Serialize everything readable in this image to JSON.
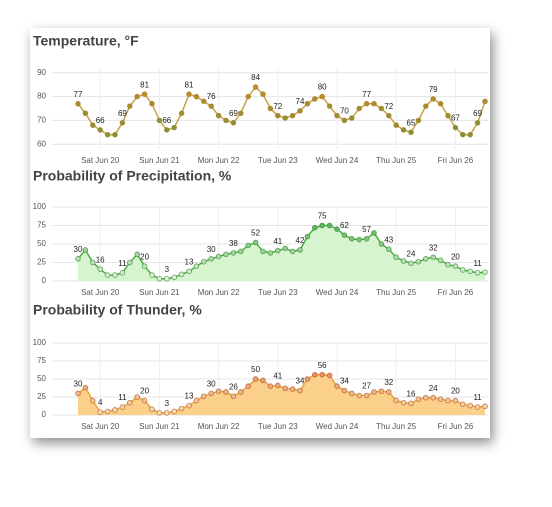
{
  "chart_data": [
    {
      "type": "line",
      "title": "Temperature, °F",
      "categories": [
        null,
        null,
        null,
        "Sat Jun 20",
        null,
        null,
        null,
        null,
        null,
        null,
        null,
        "Sun Jun 21",
        null,
        null,
        null,
        null,
        null,
        null,
        null,
        "Mon Jun 22",
        null,
        null,
        null,
        null,
        null,
        null,
        null,
        "Tue Jun 23",
        null,
        null,
        null,
        null,
        null,
        null,
        null,
        "Wed Jun 24",
        null,
        null,
        null,
        null,
        null,
        null,
        null,
        "Thu Jun 25",
        null,
        null,
        null,
        null,
        null,
        null,
        null,
        "Fri Jun 26",
        null,
        null,
        null,
        null
      ],
      "values": [
        77,
        73,
        68,
        66,
        64,
        64,
        69,
        76,
        80,
        81,
        77,
        70,
        66,
        67,
        73,
        81,
        80,
        78,
        76,
        72,
        70,
        69,
        73,
        80,
        84,
        81,
        75,
        72,
        71,
        72,
        74,
        77,
        79,
        80,
        76,
        72,
        70,
        71,
        75,
        77,
        77,
        75,
        72,
        68,
        66,
        65,
        70,
        76,
        79,
        77,
        72,
        67,
        64,
        64,
        69,
        78
      ],
      "value_labels": [
        "77",
        null,
        null,
        "66",
        null,
        null,
        "69",
        null,
        null,
        "81",
        null,
        null,
        "66",
        null,
        null,
        "81",
        null,
        null,
        "76",
        null,
        null,
        "69",
        null,
        null,
        "84",
        null,
        null,
        "72",
        null,
        null,
        "74",
        null,
        null,
        "80",
        null,
        null,
        "70",
        null,
        null,
        "77",
        null,
        null,
        "72",
        null,
        null,
        "65",
        null,
        null,
        "79",
        null,
        null,
        "67",
        null,
        null,
        "69",
        null
      ],
      "ylim": [
        58,
        92
      ],
      "yticks": [
        60,
        70,
        80,
        90
      ],
      "grid": true,
      "color": "#c9a24a",
      "color_scale": [
        "#5a9e3a",
        "#e0861e"
      ]
    },
    {
      "type": "area",
      "title": "Probability of Precipitation, %",
      "categories": [
        null,
        null,
        null,
        "Sat Jun 20",
        null,
        null,
        null,
        null,
        null,
        null,
        null,
        "Sun Jun 21",
        null,
        null,
        null,
        null,
        null,
        null,
        null,
        "Mon Jun 22",
        null,
        null,
        null,
        null,
        null,
        null,
        null,
        "Tue Jun 23",
        null,
        null,
        null,
        null,
        null,
        null,
        null,
        "Wed Jun 24",
        null,
        null,
        null,
        null,
        null,
        null,
        null,
        "Thu Jun 25",
        null,
        null,
        null,
        null,
        null,
        null,
        null,
        "Fri Jun 26",
        null,
        null,
        null,
        null
      ],
      "values": [
        30,
        42,
        25,
        16,
        8,
        8,
        11,
        25,
        36,
        20,
        8,
        3,
        3,
        5,
        9,
        13,
        20,
        26,
        30,
        33,
        36,
        38,
        40,
        48,
        52,
        40,
        38,
        41,
        44,
        40,
        42,
        60,
        72,
        75,
        75,
        70,
        62,
        57,
        56,
        57,
        65,
        50,
        43,
        32,
        27,
        24,
        26,
        30,
        32,
        28,
        22,
        20,
        15,
        13,
        11,
        12
      ],
      "value_labels": [
        "30",
        null,
        null,
        "16",
        null,
        null,
        "11",
        null,
        null,
        "20",
        null,
        null,
        "3",
        null,
        null,
        "13",
        null,
        null,
        "30",
        null,
        null,
        "38",
        null,
        null,
        "52",
        null,
        null,
        "41",
        null,
        null,
        "42",
        null,
        null,
        "75",
        null,
        null,
        "62",
        null,
        null,
        "57",
        null,
        null,
        "43",
        null,
        null,
        "24",
        null,
        null,
        "32",
        null,
        null,
        "20",
        null,
        null,
        "11",
        null
      ],
      "ylim": [
        0,
        100
      ],
      "yticks": [
        0,
        25,
        50,
        75,
        100
      ],
      "grid": true,
      "color": "#4caf3c",
      "area_color": "#d6f5cf",
      "color_scale": [
        "#e6f5df",
        "#2e9e2e"
      ]
    },
    {
      "type": "area",
      "title": "Probability of Thunder, %",
      "categories": [
        null,
        null,
        null,
        "Sat Jun 20",
        null,
        null,
        null,
        null,
        null,
        null,
        null,
        "Sun Jun 21",
        null,
        null,
        null,
        null,
        null,
        null,
        null,
        "Mon Jun 22",
        null,
        null,
        null,
        null,
        null,
        null,
        null,
        "Tue Jun 23",
        null,
        null,
        null,
        null,
        null,
        null,
        null,
        "Wed Jun 24",
        null,
        null,
        null,
        null,
        null,
        null,
        null,
        "Thu Jun 25",
        null,
        null,
        null,
        null,
        null,
        null,
        null,
        "Fri Jun 26",
        null,
        null,
        null,
        null
      ],
      "values": [
        30,
        38,
        20,
        4,
        5,
        7,
        11,
        17,
        25,
        20,
        8,
        3,
        3,
        5,
        9,
        13,
        20,
        26,
        30,
        33,
        32,
        26,
        32,
        40,
        50,
        48,
        40,
        41,
        37,
        36,
        34,
        50,
        56,
        56,
        55,
        40,
        34,
        30,
        27,
        27,
        32,
        33,
        32,
        20,
        17,
        16,
        22,
        24,
        24,
        22,
        20,
        20,
        15,
        13,
        11,
        12
      ],
      "value_labels": [
        "30",
        null,
        null,
        "4",
        null,
        null,
        "11",
        null,
        null,
        "20",
        null,
        null,
        "3",
        null,
        null,
        "13",
        null,
        null,
        "30",
        null,
        null,
        "26",
        null,
        null,
        "50",
        null,
        null,
        "41",
        null,
        null,
        "34",
        null,
        null,
        "56",
        null,
        null,
        "34",
        null,
        null,
        "27",
        null,
        null,
        "32",
        null,
        null,
        "16",
        null,
        null,
        "24",
        null,
        null,
        "20",
        null,
        null,
        "11",
        null
      ],
      "ylim": [
        0,
        100
      ],
      "yticks": [
        0,
        25,
        50,
        75,
        100
      ],
      "grid": true,
      "color": "#e8a53a",
      "area_color": "#fbd08a",
      "color_scale": [
        "#f7e3b8",
        "#d9541e"
      ]
    }
  ]
}
